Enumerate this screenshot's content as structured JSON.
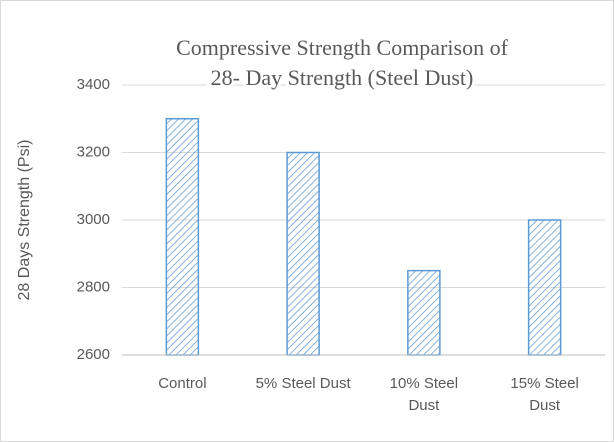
{
  "chart_data": {
    "type": "bar",
    "title": [
      "Compressive Strength Comparison of",
      "28- Day Strength (Steel Dust)"
    ],
    "y_label": "28 Days Strength (Psi)",
    "categories": [
      "Control",
      "5% Steel Dust",
      "10% Steel Dust",
      "15% Steel Dust"
    ],
    "values": [
      3300,
      3200,
      2850,
      3000
    ],
    "color": "#5b9bd5",
    "ylim": [
      2600,
      3400
    ],
    "yticks": [
      2600,
      2800,
      3000,
      3200,
      3400
    ],
    "grid": true
  }
}
